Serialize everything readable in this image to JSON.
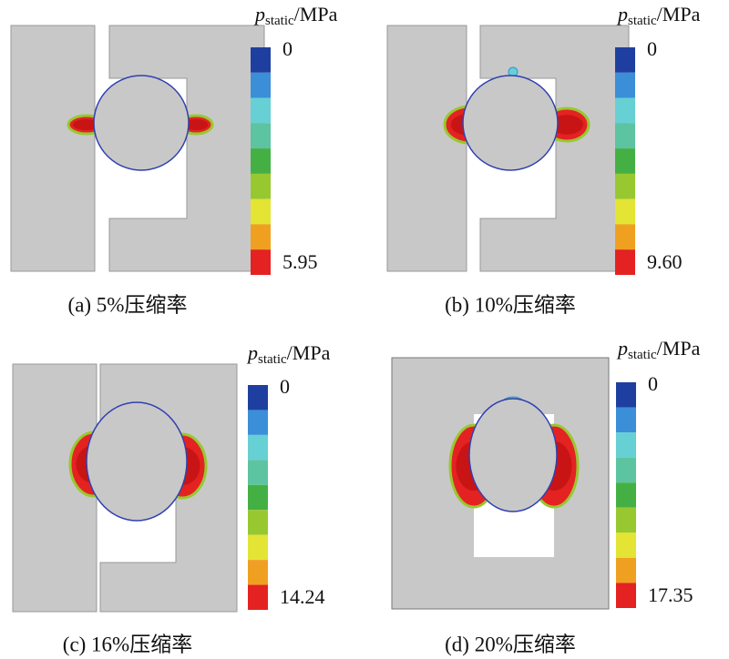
{
  "panels": [
    {
      "caption": "(a) 5%压缩率",
      "legend": {
        "symbol": "p",
        "subscript": "static",
        "unit": "/MPa",
        "min_label": "0",
        "max_label": "5.95"
      }
    },
    {
      "caption": "(b) 10%压缩率",
      "legend": {
        "symbol": "p",
        "subscript": "static",
        "unit": "/MPa",
        "min_label": "0",
        "max_label": "9.60"
      }
    },
    {
      "caption": "(c) 16%压缩率",
      "legend": {
        "symbol": "p",
        "subscript": "static",
        "unit": "/MPa",
        "min_label": "0",
        "max_label": "14.24"
      }
    },
    {
      "caption": "(d) 20%压缩率",
      "legend": {
        "symbol": "p",
        "subscript": "static",
        "unit": "/MPa",
        "min_label": "0",
        "max_label": "17.35"
      }
    }
  ]
}
